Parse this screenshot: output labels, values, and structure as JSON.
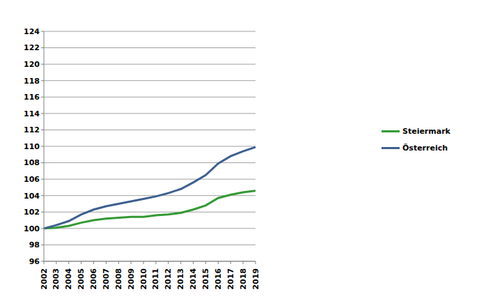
{
  "chart_data": {
    "type": "line",
    "categories": [
      "2002",
      "2003",
      "2004",
      "2005",
      "2006",
      "2007",
      "2008",
      "2009",
      "2010",
      "2011",
      "2012",
      "2013",
      "2014",
      "2015",
      "2016",
      "2017",
      "2018",
      "2019"
    ],
    "series": [
      {
        "name": "Steiermark",
        "color": "#339933",
        "values": [
          100,
          100.1,
          100.3,
          100.7,
          101.0,
          101.2,
          101.3,
          101.4,
          101.4,
          101.6,
          101.7,
          101.9,
          102.3,
          102.8,
          103.7,
          104.1,
          104.4,
          104.6
        ]
      },
      {
        "name": "Österreich",
        "color": "#3d5f8f",
        "values": [
          100,
          100.4,
          100.9,
          101.7,
          102.3,
          102.7,
          103.0,
          103.3,
          103.6,
          103.9,
          104.3,
          104.8,
          105.6,
          106.5,
          107.9,
          108.8,
          109.4,
          109.9
        ]
      }
    ],
    "ylim": [
      96,
      124
    ],
    "yticks": [
      96,
      98,
      100,
      102,
      104,
      106,
      108,
      110,
      112,
      114,
      116,
      118,
      120,
      122,
      124
    ],
    "grid": true,
    "legend": "right"
  }
}
